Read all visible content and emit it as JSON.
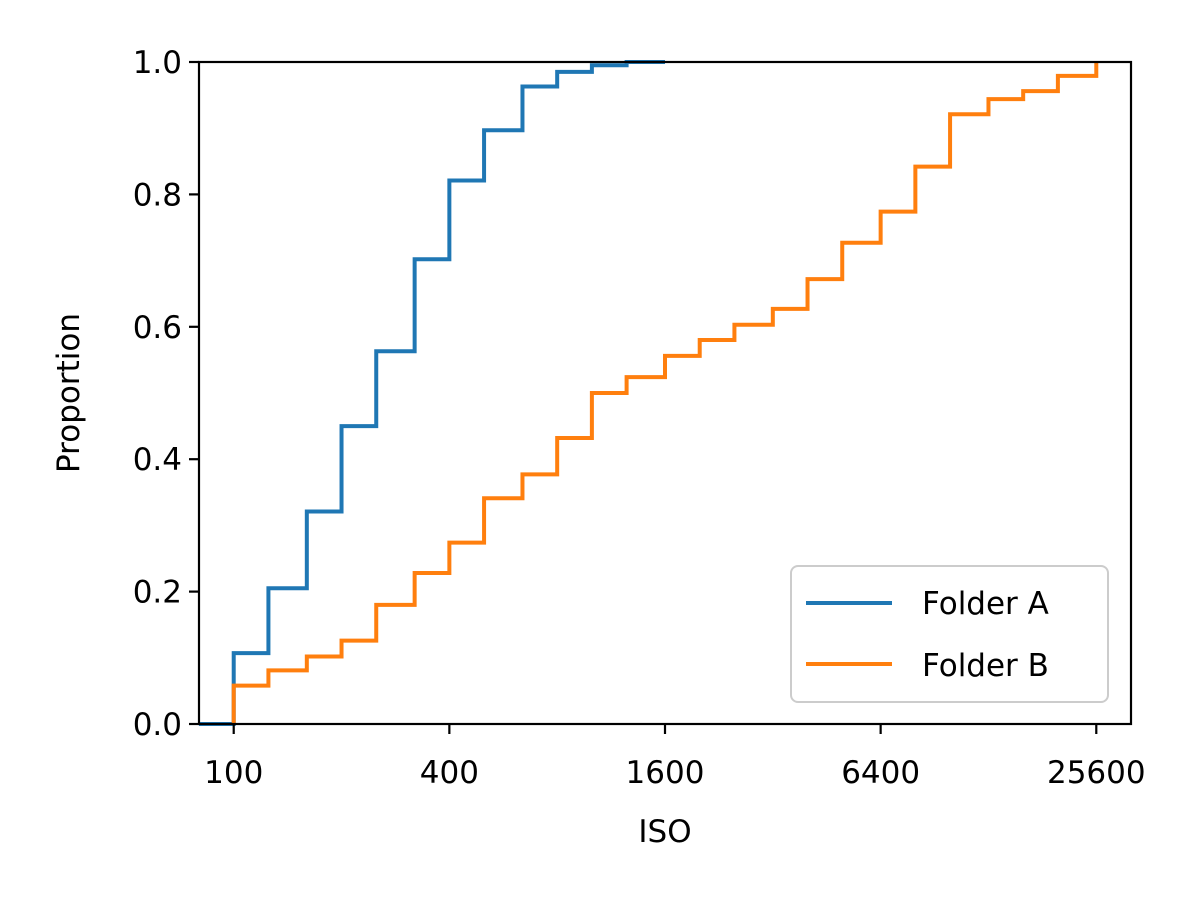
{
  "chart_data": {
    "type": "line",
    "subtype": "ecdf-step",
    "title": "",
    "xlabel": "ISO",
    "ylabel": "Proportion",
    "x_scale": "log2",
    "xlim": [
      80,
      32000
    ],
    "ylim": [
      0.0,
      1.0
    ],
    "xticks": [
      100,
      400,
      1600,
      6400,
      25600
    ],
    "xtick_labels": [
      "100",
      "400",
      "1600",
      "6400",
      "25600"
    ],
    "yticks": [
      0.0,
      0.2,
      0.4,
      0.6,
      0.8,
      1.0
    ],
    "ytick_labels": [
      "0.0",
      "0.2",
      "0.4",
      "0.6",
      "0.8",
      "1.0"
    ],
    "grid": false,
    "legend_position": "lower-right",
    "series": [
      {
        "name": "Folder A",
        "color": "#1f77b4",
        "start_x": 80,
        "points": [
          [
            100,
            0.107
          ],
          [
            125,
            0.205
          ],
          [
            160,
            0.321
          ],
          [
            200,
            0.45
          ],
          [
            250,
            0.563
          ],
          [
            320,
            0.702
          ],
          [
            400,
            0.821
          ],
          [
            500,
            0.897
          ],
          [
            640,
            0.963
          ],
          [
            800,
            0.985
          ],
          [
            1000,
            0.995
          ],
          [
            1250,
            1.0
          ]
        ],
        "end_x": 1600
      },
      {
        "name": "Folder B",
        "color": "#ff7f0e",
        "start_x": 100,
        "points": [
          [
            100,
            0.058
          ],
          [
            125,
            0.081
          ],
          [
            160,
            0.102
          ],
          [
            200,
            0.126
          ],
          [
            250,
            0.18
          ],
          [
            320,
            0.228
          ],
          [
            400,
            0.274
          ],
          [
            500,
            0.341
          ],
          [
            640,
            0.377
          ],
          [
            800,
            0.432
          ],
          [
            1000,
            0.5
          ],
          [
            1250,
            0.524
          ],
          [
            1600,
            0.556
          ],
          [
            2000,
            0.58
          ],
          [
            2500,
            0.603
          ],
          [
            3200,
            0.627
          ],
          [
            4000,
            0.672
          ],
          [
            5000,
            0.727
          ],
          [
            6400,
            0.774
          ],
          [
            8000,
            0.842
          ],
          [
            10000,
            0.921
          ],
          [
            12800,
            0.944
          ],
          [
            16000,
            0.956
          ],
          [
            20000,
            0.979
          ],
          [
            25600,
            1.0
          ]
        ],
        "end_x": 25600
      }
    ]
  }
}
